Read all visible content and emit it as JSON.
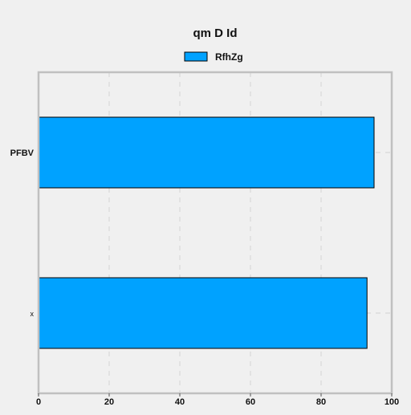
{
  "chart_data": {
    "type": "bar",
    "orientation": "horizontal",
    "title": "qm D Id",
    "categories": [
      "PFBV",
      "x"
    ],
    "series": [
      {
        "name": "RfhZg",
        "values": [
          95,
          93
        ]
      }
    ],
    "xlabel": "",
    "ylabel": "",
    "xlim": [
      0,
      100
    ],
    "x_ticks": [
      0,
      20,
      40,
      60,
      80,
      100
    ],
    "grid": true,
    "legend_position": "top-center",
    "colors": {
      "bar_fill": "#00a2ff",
      "bar_stroke": "#000000",
      "frame": "#c0c0c0",
      "grid": "#d8d8d8",
      "background": "#f0f0f0"
    }
  }
}
